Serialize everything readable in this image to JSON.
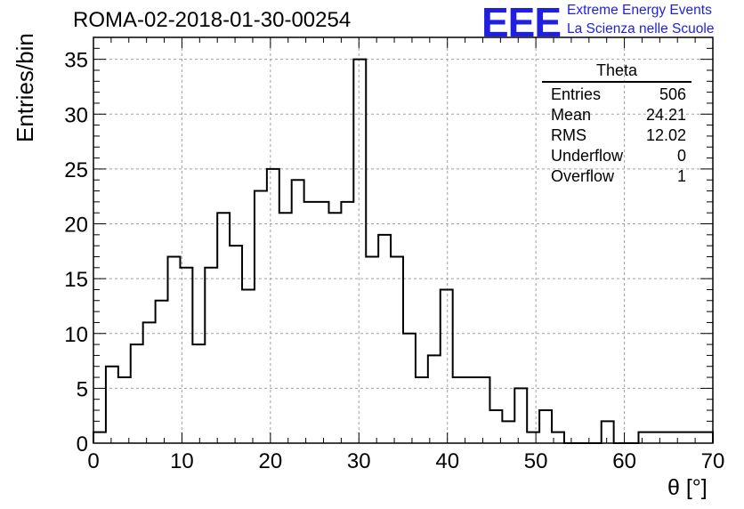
{
  "header": {
    "title": "ROMA-02-2018-01-30-00254",
    "logo_mark": "EEE",
    "logo_line1": "Extreme Energy Events",
    "logo_line2": "La Scienza nelle Scuole"
  },
  "stats": {
    "title": "Theta",
    "rows": [
      {
        "label": "Entries",
        "value": "506"
      },
      {
        "label": "Mean",
        "value": "24.21"
      },
      {
        "label": "RMS",
        "value": "12.02"
      },
      {
        "label": "Underflow",
        "value": "0"
      },
      {
        "label": "Overflow",
        "value": "1"
      }
    ]
  },
  "chart_data": {
    "type": "histogram",
    "xlabel": "θ [°]",
    "ylabel": "Entries/bin",
    "xlim": [
      0,
      70
    ],
    "ylim": [
      0,
      37
    ],
    "bin_width": 1.4,
    "x_ticks": [
      0,
      10,
      20,
      30,
      40,
      50,
      60,
      70
    ],
    "y_ticks": [
      0,
      5,
      10,
      15,
      20,
      25,
      30,
      35
    ],
    "grid": true,
    "values": [
      1,
      7,
      6,
      9,
      11,
      13,
      17,
      16,
      9,
      16,
      21,
      18,
      14,
      23,
      25,
      21,
      24,
      22,
      22,
      21,
      22,
      35,
      17,
      19,
      17,
      10,
      6,
      8,
      14,
      6,
      6,
      6,
      3,
      2,
      5,
      1,
      3,
      1,
      0,
      0,
      0,
      2,
      0,
      0,
      1,
      1,
      1,
      1,
      1,
      1
    ],
    "line_color": "#000000",
    "accent_color": "#1f1fe0"
  }
}
